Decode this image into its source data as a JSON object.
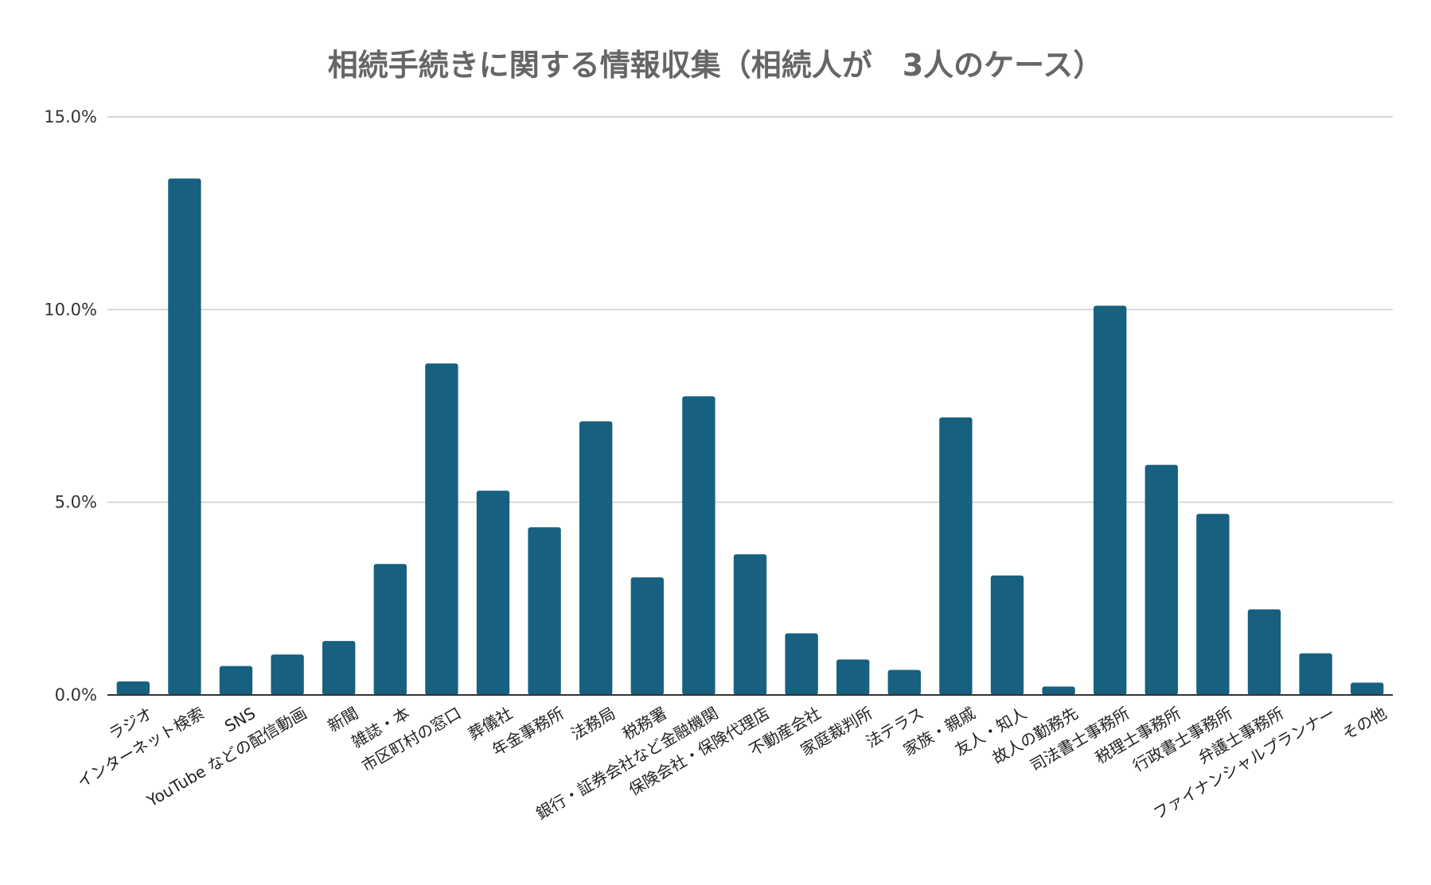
{
  "chart_data": {
    "type": "bar",
    "title": "相続手続きに関する情報収集（相続人が　3人のケース）",
    "xlabel": "",
    "ylabel": "",
    "ylim": [
      0,
      15
    ],
    "y_ticks": [
      0,
      5,
      10,
      15
    ],
    "y_tick_labels": [
      "0.0%",
      "5.0%",
      "10.0%",
      "15.0%"
    ],
    "grid": true,
    "legend": "none",
    "bar_color": "#17607f",
    "categories": [
      "ラジオ",
      "インターネット検索",
      "SNS",
      "YouTube などの配信動画",
      "新聞",
      "雑誌・本",
      "市区町村の窓口",
      "葬儀社",
      "年金事務所",
      "法務局",
      "税務署",
      "銀行・証券会社など金融機関",
      "保険会社・保険代理店",
      "不動産会社",
      "家庭裁判所",
      "法テラス",
      "家族・親戚",
      "友人・知人",
      "故人の勤務先",
      "司法書士事務所",
      "税理士事務所",
      "行政書士事務所",
      "弁護士事務所",
      "ファイナンシャルプランナー",
      "その他"
    ],
    "values": [
      0.35,
      13.4,
      0.75,
      1.05,
      1.4,
      3.4,
      8.6,
      5.3,
      4.35,
      7.1,
      3.05,
      7.75,
      3.65,
      1.6,
      0.92,
      0.65,
      7.2,
      3.1,
      0.22,
      10.1,
      5.97,
      4.7,
      2.22,
      1.08,
      0.32
    ]
  }
}
